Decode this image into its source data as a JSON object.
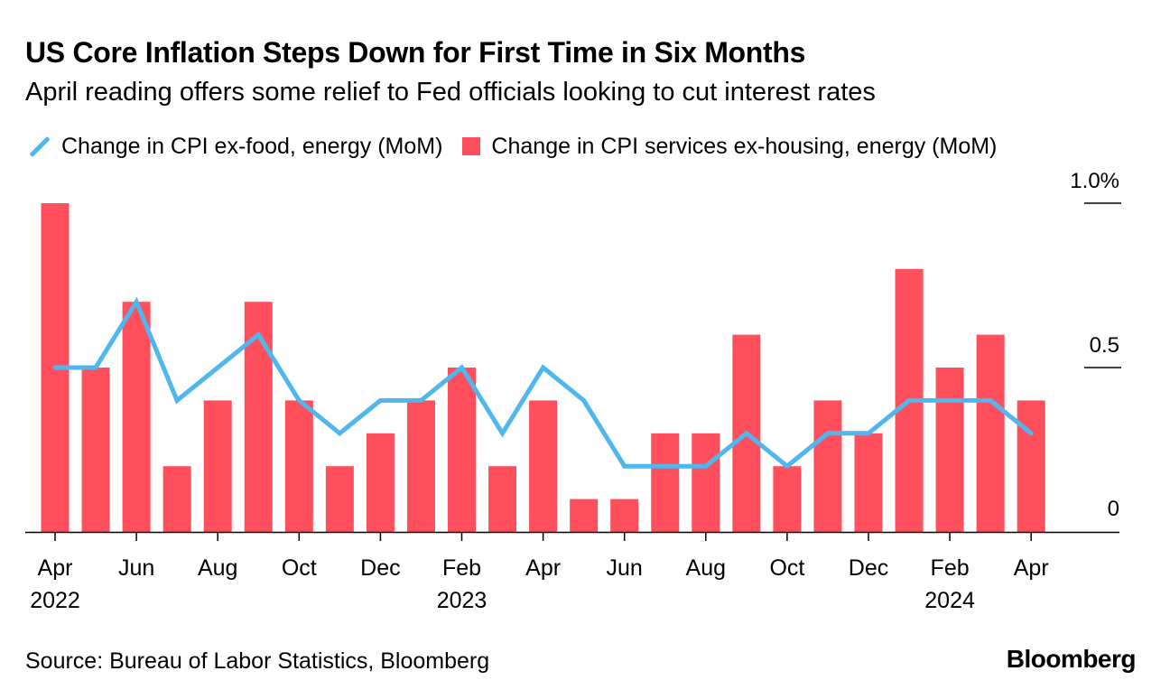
{
  "header": {
    "title": "US Core Inflation Steps Down for First Time in Six Months",
    "subtitle": "April reading offers some relief to Fed officials looking to cut interest rates"
  },
  "legend": {
    "line_label": "Change in CPI ex-food, energy (MoM)",
    "bar_label": "Change in CPI services ex-housing, energy (MoM)"
  },
  "colors": {
    "line": "#4fb6ee",
    "bar": "#ff4f5c"
  },
  "chart_data": {
    "type": "bar",
    "title": "US Core Inflation Steps Down for First Time in Six Months",
    "categories": [
      "2022-04",
      "2022-05",
      "2022-06",
      "2022-07",
      "2022-08",
      "2022-09",
      "2022-10",
      "2022-11",
      "2022-12",
      "2023-01",
      "2023-02",
      "2023-03",
      "2023-04",
      "2023-05",
      "2023-06",
      "2023-07",
      "2023-08",
      "2023-09",
      "2023-10",
      "2023-11",
      "2023-12",
      "2024-01",
      "2024-02",
      "2024-03",
      "2024-04"
    ],
    "series": [
      {
        "name": "Change in CPI services ex-housing, energy (MoM)",
        "type": "bar",
        "values": [
          1.0,
          0.5,
          0.7,
          0.2,
          0.4,
          0.7,
          0.4,
          0.2,
          0.3,
          0.4,
          0.5,
          0.2,
          0.4,
          0.1,
          0.1,
          0.3,
          0.3,
          0.6,
          0.2,
          0.4,
          0.3,
          0.8,
          0.5,
          0.6,
          0.4
        ]
      },
      {
        "name": "Change in CPI ex-food, energy (MoM)",
        "type": "line",
        "values": [
          0.5,
          0.5,
          0.7,
          0.4,
          0.5,
          0.6,
          0.4,
          0.3,
          0.4,
          0.4,
          0.5,
          0.3,
          0.5,
          0.4,
          0.2,
          0.2,
          0.2,
          0.3,
          0.2,
          0.3,
          0.3,
          0.4,
          0.4,
          0.4,
          0.3
        ]
      }
    ],
    "x_ticks": [
      {
        "index": 0,
        "month": "Apr",
        "year": "2022"
      },
      {
        "index": 2,
        "month": "Jun",
        "year": ""
      },
      {
        "index": 4,
        "month": "Aug",
        "year": ""
      },
      {
        "index": 6,
        "month": "Oct",
        "year": ""
      },
      {
        "index": 8,
        "month": "Dec",
        "year": ""
      },
      {
        "index": 10,
        "month": "Feb",
        "year": "2023"
      },
      {
        "index": 12,
        "month": "Apr",
        "year": ""
      },
      {
        "index": 14,
        "month": "Jun",
        "year": ""
      },
      {
        "index": 16,
        "month": "Aug",
        "year": ""
      },
      {
        "index": 18,
        "month": "Oct",
        "year": ""
      },
      {
        "index": 20,
        "month": "Dec",
        "year": ""
      },
      {
        "index": 22,
        "month": "Feb",
        "year": "2024"
      },
      {
        "index": 24,
        "month": "Apr",
        "year": ""
      }
    ],
    "y_ticks": [
      {
        "value": 1.0,
        "label": "1.0%"
      },
      {
        "value": 0.5,
        "label": "0.5"
      },
      {
        "value": 0,
        "label": "0"
      }
    ],
    "ylim": [
      0,
      1.0
    ],
    "xlabel": "",
    "ylabel": "",
    "legend_position": "top-left"
  },
  "footer": {
    "source": "Source: Bureau of Labor Statistics, Bloomberg",
    "brand": "Bloomberg"
  }
}
